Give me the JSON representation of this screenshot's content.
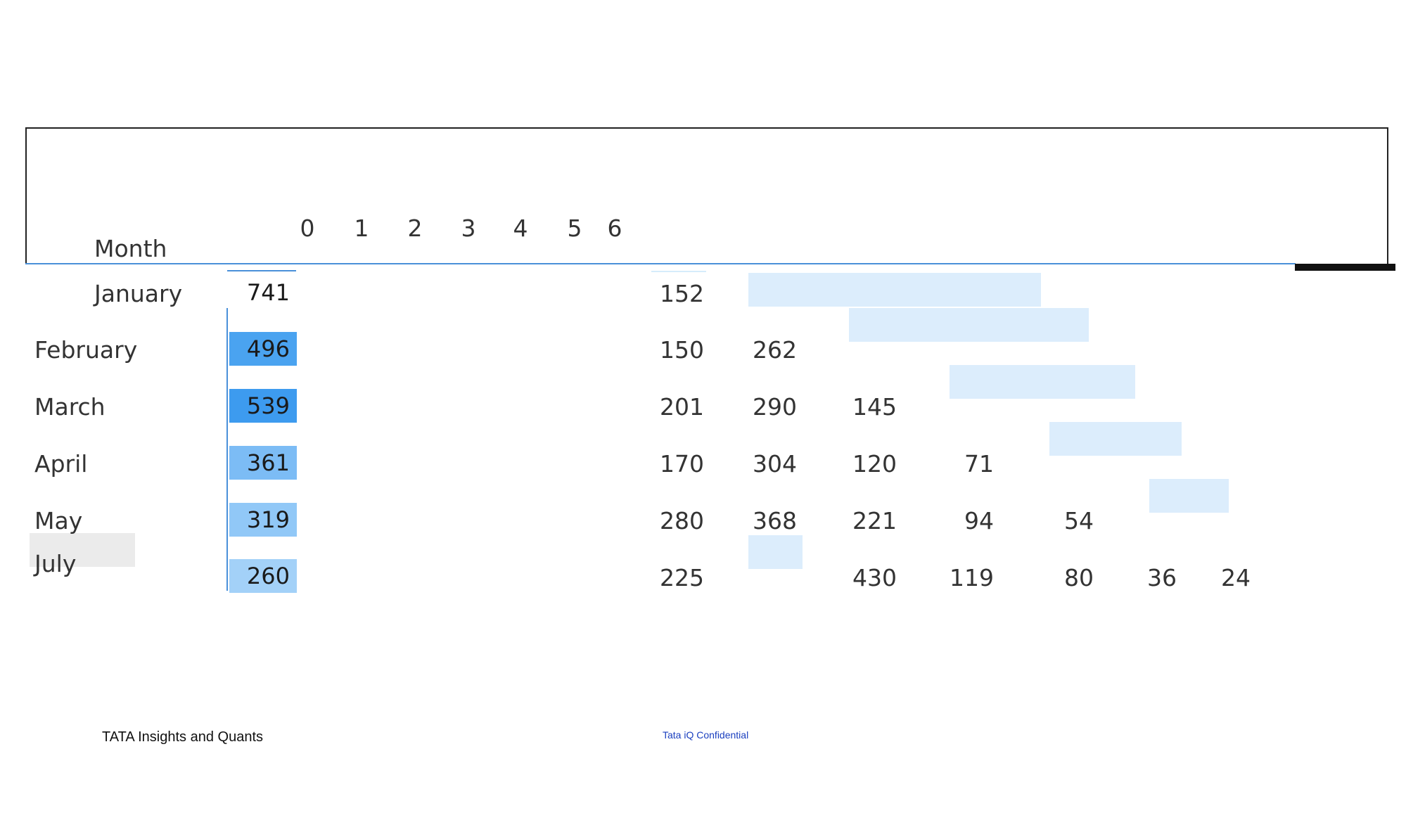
{
  "table": {
    "month_header": "Month",
    "column_headers": [
      "0",
      "1",
      "2",
      "3",
      "4",
      "5",
      "6"
    ],
    "rows": [
      {
        "month": "January",
        "total": "741",
        "values": [
          "152"
        ]
      },
      {
        "month": "February",
        "total": "496",
        "values": [
          "150",
          "262"
        ]
      },
      {
        "month": "March",
        "total": "539",
        "values": [
          "201",
          "290",
          "145"
        ]
      },
      {
        "month": "April",
        "total": "361",
        "values": [
          "170",
          "304",
          "120",
          "71"
        ]
      },
      {
        "month": "May",
        "total": "319",
        "values": [
          "280",
          "368",
          "221",
          "94",
          "54"
        ]
      },
      {
        "month": "July",
        "total": "260",
        "values": [
          "225",
          "430",
          "119",
          "80",
          "36",
          "24"
        ]
      }
    ],
    "total_bar_colors": [
      "#ffffff",
      "#4aa3f0",
      "#3d9bef",
      "#7cbcf5",
      "#91c8f7",
      "#a3d1f8"
    ]
  },
  "colors": {
    "accent_line": "#4a90d9",
    "shade": "#dcedfc",
    "highlight_row": "#ebebeb"
  },
  "footer": {
    "left": "TATA Insights and Quants",
    "center": "Tata iQ Confidential"
  }
}
